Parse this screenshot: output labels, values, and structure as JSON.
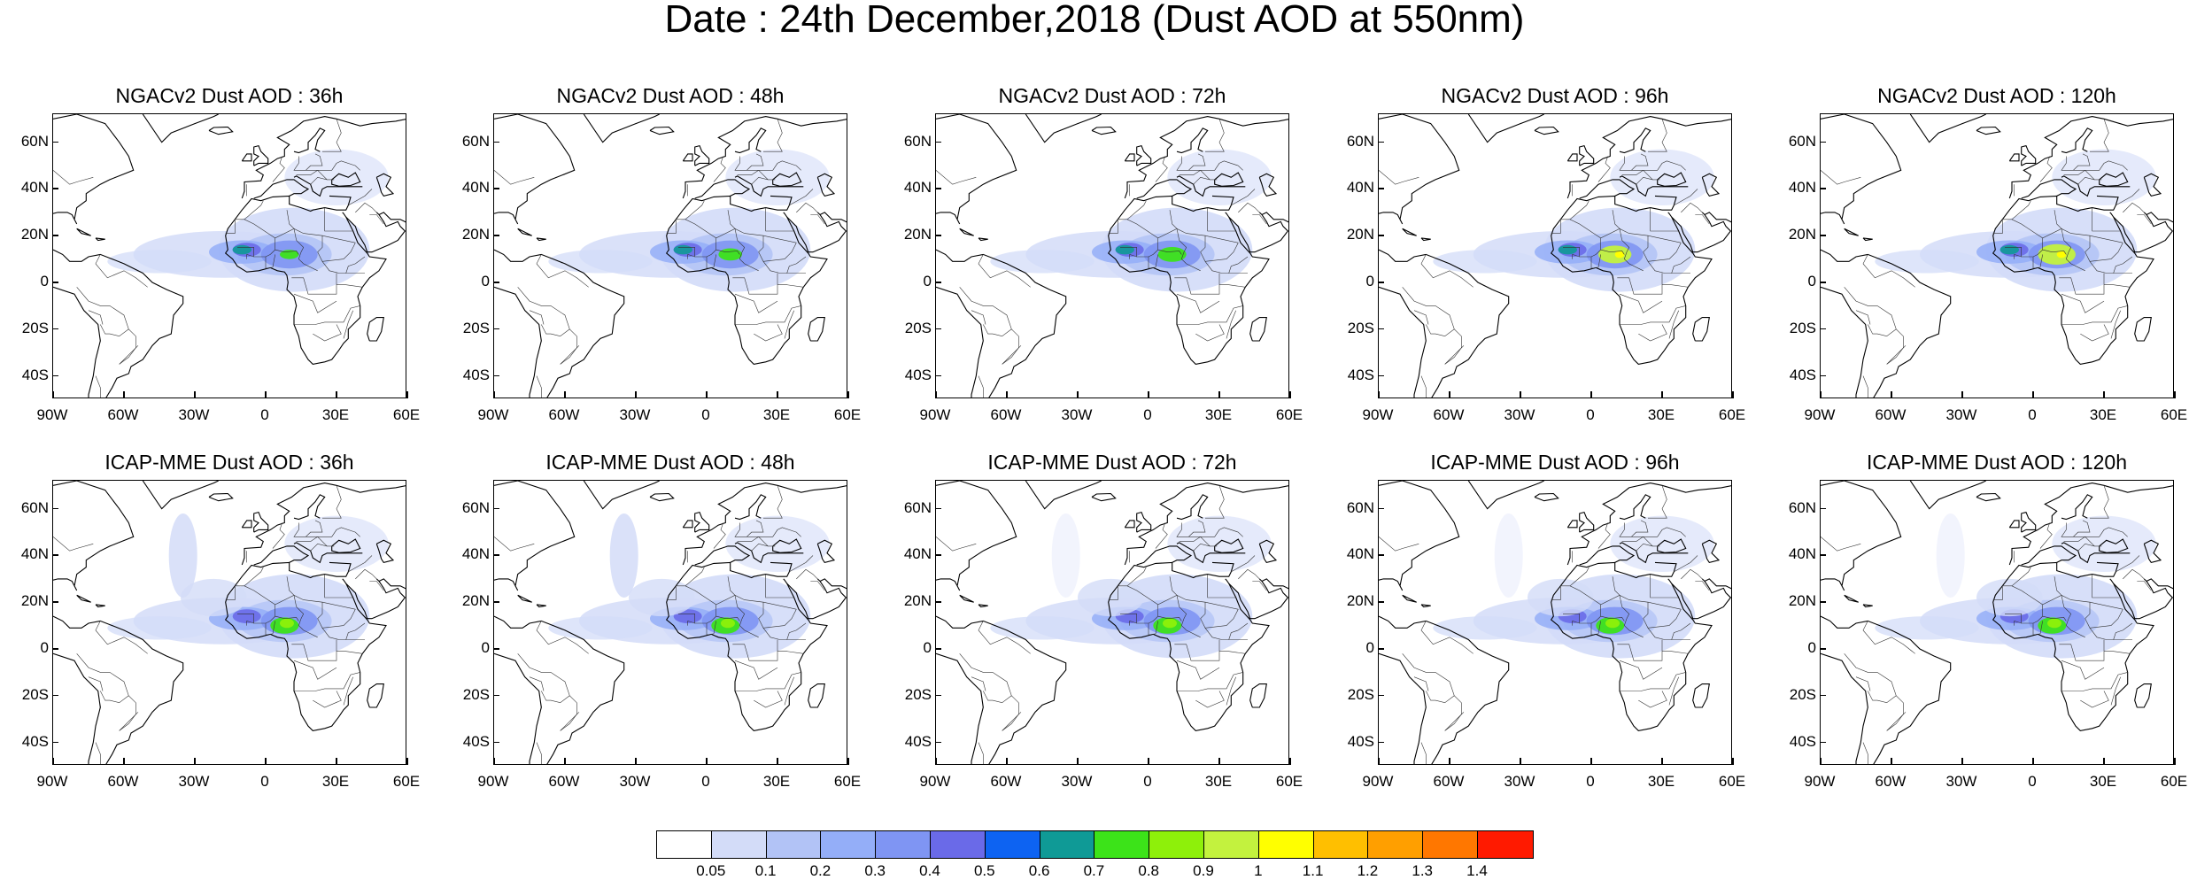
{
  "title": "Date : 24th December,2018 (Dust AOD at 550nm)",
  "lat_labels": [
    "60N",
    "40N",
    "20N",
    "0",
    "20S",
    "40S"
  ],
  "lon_labels": [
    "90W",
    "60W",
    "30W",
    "0",
    "30E",
    "60E"
  ],
  "panels": [
    {
      "label": "NGACv2 Dust AOD : 36h",
      "model": "NGACv2",
      "lead": 36
    },
    {
      "label": "NGACv2 Dust AOD : 48h",
      "model": "NGACv2",
      "lead": 48
    },
    {
      "label": "NGACv2 Dust AOD : 72h",
      "model": "NGACv2",
      "lead": 72
    },
    {
      "label": "NGACv2 Dust AOD : 96h",
      "model": "NGACv2",
      "lead": 96
    },
    {
      "label": "NGACv2 Dust AOD : 120h",
      "model": "NGACv2",
      "lead": 120
    },
    {
      "label": "ICAP-MME Dust AOD : 36h",
      "model": "ICAP-MME",
      "lead": 36
    },
    {
      "label": "ICAP-MME Dust AOD : 48h",
      "model": "ICAP-MME",
      "lead": 48
    },
    {
      "label": "ICAP-MME Dust AOD : 72h",
      "model": "ICAP-MME",
      "lead": 72
    },
    {
      "label": "ICAP-MME Dust AOD : 96h",
      "model": "ICAP-MME",
      "lead": 96
    },
    {
      "label": "ICAP-MME Dust AOD : 120h",
      "model": "ICAP-MME",
      "lead": 120
    }
  ],
  "colorbar": {
    "labels": [
      "0.05",
      "0.1",
      "0.2",
      "0.3",
      "0.4",
      "0.5",
      "0.6",
      "0.7",
      "0.8",
      "0.9",
      "1",
      "1.1",
      "1.2",
      "1.3",
      "1.4"
    ],
    "colors": [
      "#ffffff",
      "#d3dcf8",
      "#b2c3f6",
      "#94aef8",
      "#7f95f3",
      "#6a6ae8",
      "#0d63f2",
      "#0f9a96",
      "#3ce319",
      "#8ef00a",
      "#c3f23e",
      "#ffff00",
      "#ffbf00",
      "#ff9f00",
      "#ff7700",
      "#ff1a00"
    ]
  }
}
